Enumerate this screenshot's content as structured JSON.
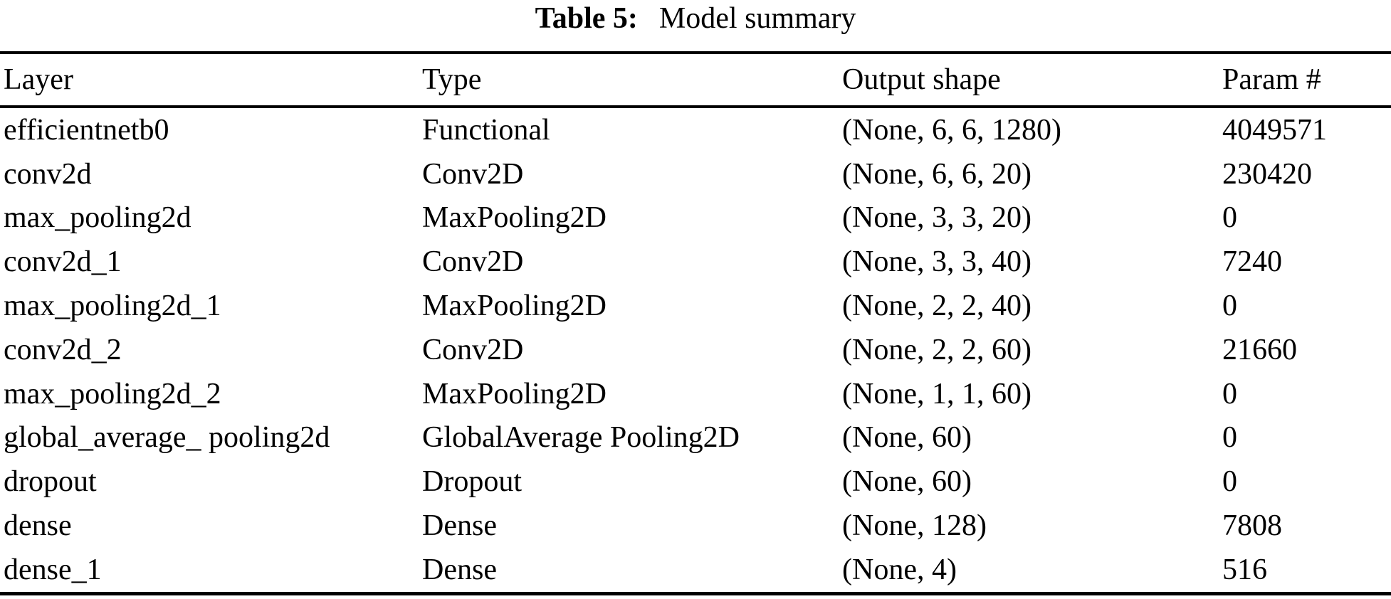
{
  "page": {
    "background_color": "#ffffff",
    "text_color": "#000000"
  },
  "caption": {
    "label": "Table 5:",
    "title": "Model summary"
  },
  "table": {
    "columns": [
      "Layer",
      "Type",
      "Output shape",
      "Param #"
    ],
    "rows": [
      [
        "efficientnetb0",
        "Functional",
        "(None, 6, 6, 1280)",
        "4049571"
      ],
      [
        "conv2d",
        "Conv2D",
        "(None, 6, 6, 20)",
        "230420"
      ],
      [
        "max_pooling2d",
        "MaxPooling2D",
        "(None, 3, 3, 20)",
        "0"
      ],
      [
        "conv2d_1",
        "Conv2D",
        "(None, 3, 3, 40)",
        "7240"
      ],
      [
        "max_pooling2d_1",
        "MaxPooling2D",
        "(None, 2, 2, 40)",
        "0"
      ],
      [
        "conv2d_2",
        "Conv2D",
        "(None, 2, 2, 60)",
        "21660"
      ],
      [
        "max_pooling2d_2",
        "MaxPooling2D",
        "(None, 1, 1, 60)",
        "0"
      ],
      [
        "global_average_ pooling2d",
        "GlobalAverage Pooling2D",
        "(None, 60)",
        "0"
      ],
      [
        "dropout",
        "Dropout",
        "(None, 60)",
        "0"
      ],
      [
        "dense",
        "Dense",
        "(None, 128)",
        "7808"
      ],
      [
        "dense_1",
        "Dense",
        "(None, 4)",
        "516"
      ]
    ]
  }
}
